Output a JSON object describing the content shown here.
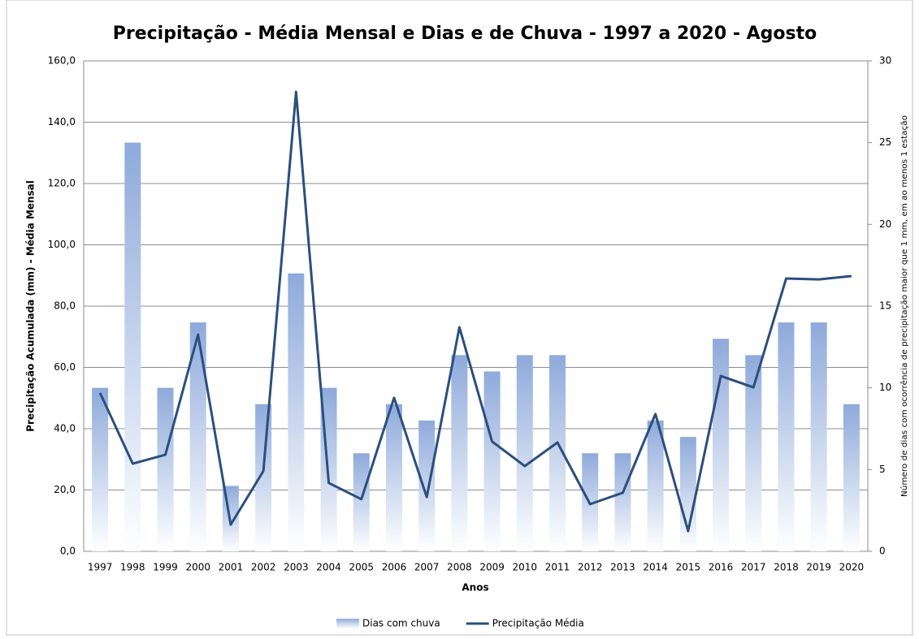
{
  "chart_data": {
    "type": "combo",
    "title": "Precipitação - Média Mensal e Dias e de Chuva - 1997 a 2020 - Agosto",
    "x_label": "Anos",
    "y_label": "Precipitação  Acumulada  (mm) - Média Mensal",
    "y2_label": "Número de dias com ocorrência de precipitação maior que 1 mm, em ao menos 1 estação",
    "categories": [
      "1997",
      "1998",
      "1999",
      "2000",
      "2001",
      "2002",
      "2003",
      "2004",
      "2005",
      "2006",
      "2007",
      "2008",
      "2009",
      "2010",
      "2011",
      "2012",
      "2013",
      "2014",
      "2015",
      "2016",
      "2017",
      "2018",
      "2019",
      "2020"
    ],
    "series": [
      {
        "name": "Dias com chuva",
        "type": "bar",
        "axis": "y2",
        "color": "#8eaadb",
        "values": [
          10,
          25,
          10,
          14,
          4,
          9,
          17,
          10,
          6,
          9,
          8,
          12,
          11,
          12,
          12,
          6,
          6,
          8,
          7,
          13,
          12,
          14,
          14,
          9
        ]
      },
      {
        "name": "Precipitação Média",
        "type": "line",
        "color": "#2b4f7e",
        "values": [
          51.7,
          28.6,
          31.5,
          70.7,
          8.7,
          26.2,
          149.9,
          22.3,
          17.0,
          50.1,
          17.7,
          73.1,
          35.8,
          27.8,
          35.5,
          15.4,
          19.1,
          44.8,
          6.6,
          57.2,
          53.5,
          89.0,
          88.7,
          89.8
        ]
      }
    ],
    "ylim": [
      0,
      160
    ],
    "yticks": [
      {
        "value": 0,
        "label": "0,0"
      },
      {
        "value": 20,
        "label": "20,0"
      },
      {
        "value": 40,
        "label": "40,0"
      },
      {
        "value": 60,
        "label": "60,0"
      },
      {
        "value": 80,
        "label": "80,0"
      },
      {
        "value": 100,
        "label": "100,0"
      },
      {
        "value": 120,
        "label": "120,0"
      },
      {
        "value": 140,
        "label": "140,0"
      },
      {
        "value": 160,
        "label": "160,0"
      }
    ],
    "y2lim": [
      0,
      30
    ],
    "y2ticks": [
      0,
      5,
      10,
      15,
      20,
      25,
      30
    ],
    "grid": true,
    "legend": "bottom"
  }
}
